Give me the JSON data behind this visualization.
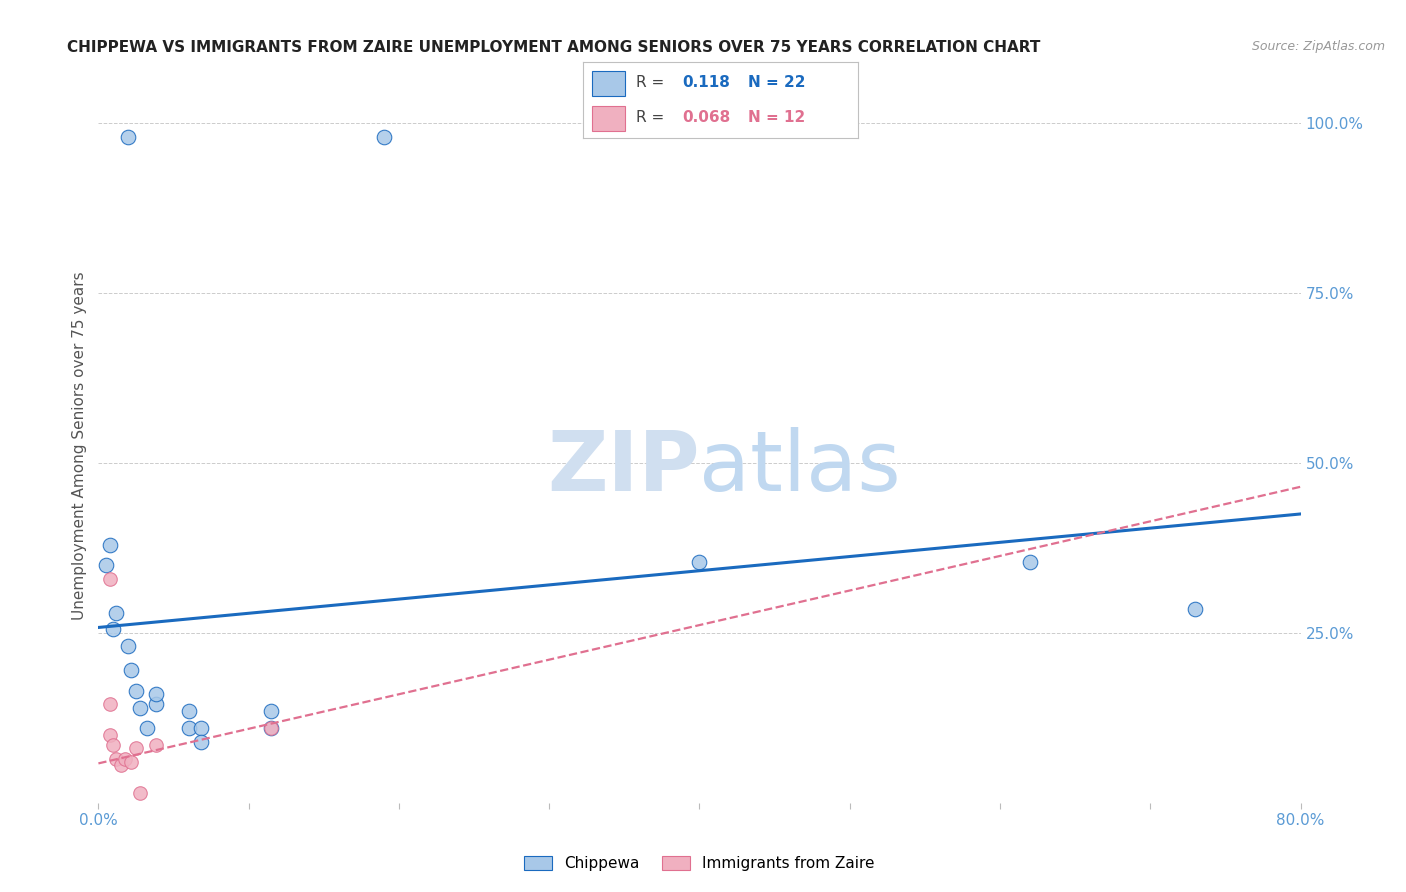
{
  "title": "CHIPPEWA VS IMMIGRANTS FROM ZAIRE UNEMPLOYMENT AMONG SENIORS OVER 75 YEARS CORRELATION CHART",
  "source": "Source: ZipAtlas.com",
  "ylabel": "Unemployment Among Seniors over 75 years",
  "xlim": [
    0.0,
    0.8
  ],
  "ylim": [
    0.0,
    1.05
  ],
  "ytick_right_values": [
    1.0,
    0.75,
    0.5,
    0.25
  ],
  "chippewa_R": 0.118,
  "chippewa_N": 22,
  "zaire_R": 0.068,
  "zaire_N": 12,
  "chippewa_color": "#a8c8e8",
  "zaire_color": "#f0b0c0",
  "chippewa_line_color": "#1a6abf",
  "zaire_line_color": "#e07090",
  "chippewa_x": [
    0.02,
    0.19,
    0.008,
    0.005,
    0.012,
    0.01,
    0.02,
    0.022,
    0.025,
    0.028,
    0.032,
    0.038,
    0.038,
    0.06,
    0.06,
    0.068,
    0.068,
    0.115,
    0.115,
    0.4,
    0.62,
    0.73
  ],
  "chippewa_y": [
    0.98,
    0.98,
    0.38,
    0.35,
    0.28,
    0.255,
    0.23,
    0.195,
    0.165,
    0.14,
    0.11,
    0.145,
    0.16,
    0.135,
    0.11,
    0.11,
    0.09,
    0.135,
    0.11,
    0.355,
    0.355,
    0.285
  ],
  "zaire_x": [
    0.008,
    0.008,
    0.008,
    0.01,
    0.012,
    0.015,
    0.018,
    0.022,
    0.025,
    0.028,
    0.038,
    0.115
  ],
  "zaire_y": [
    0.33,
    0.145,
    0.1,
    0.085,
    0.065,
    0.055,
    0.065,
    0.06,
    0.08,
    0.015,
    0.085,
    0.11
  ],
  "chippewa_trendline_x": [
    0.0,
    0.8
  ],
  "chippewa_trendline_y": [
    0.258,
    0.425
  ],
  "zaire_trendline_x": [
    0.0,
    0.8
  ],
  "zaire_trendline_y": [
    0.058,
    0.465
  ]
}
